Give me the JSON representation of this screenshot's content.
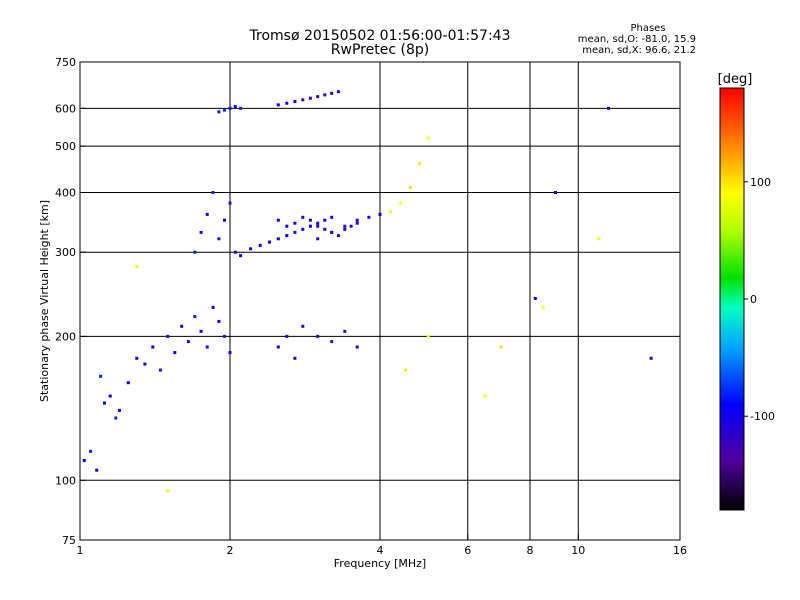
{
  "chart_data": {
    "type": "scatter",
    "title": "Tromsø 20150502 01:56:00-01:57:43",
    "subtitle": "RwPretec (8p)",
    "xlabel": "Frequency [MHz]",
    "ylabel": "Stationary phase Virtual Height [km]",
    "x_scale": "log",
    "y_scale": "log",
    "xlim": [
      1,
      16
    ],
    "ylim": [
      75,
      750
    ],
    "x_ticks": [
      1,
      2,
      4,
      6,
      8,
      10,
      16
    ],
    "y_ticks": [
      75,
      100,
      200,
      300,
      400,
      500,
      600,
      750
    ],
    "x_grid": [
      2,
      4,
      6,
      8,
      10
    ],
    "y_grid": [
      100,
      200,
      300,
      400,
      500,
      600
    ],
    "grid": true,
    "phase_stats": {
      "title": "Phases",
      "line_o": "mean, sd,O: -81.0, 15.9",
      "line_x": "mean, sd,X:  96.6, 21.2"
    },
    "colorbar": {
      "label": "[deg]",
      "range": [
        -180,
        180
      ],
      "ticks": [
        100,
        0,
        -100
      ],
      "tick_labels": [
        "100",
        "0",
        "-100"
      ],
      "placement": "right"
    },
    "series": [
      {
        "x": [
          1.02,
          1.05,
          1.08,
          1.1,
          1.12,
          1.15,
          1.18,
          1.2,
          1.25,
          1.3,
          1.35,
          1.4,
          1.45,
          1.5,
          1.55,
          1.6,
          1.65,
          1.7,
          1.75,
          1.8,
          1.85,
          1.9,
          1.95,
          2.0
        ],
        "y": [
          110,
          115,
          105,
          165,
          145,
          150,
          135,
          140,
          160,
          180,
          175,
          190,
          170,
          200,
          185,
          210,
          195,
          220,
          205,
          190,
          230,
          215,
          200,
          185
        ],
        "phase": [
          -100,
          -90,
          -105,
          -85,
          -95,
          -100,
          -90,
          -95,
          -100,
          -105,
          -95,
          -100,
          -90,
          -95,
          -100,
          -105,
          -95,
          -90,
          -100,
          -95,
          -105,
          -100,
          -90,
          -95
        ]
      },
      {
        "x": [
          1.7,
          1.75,
          1.8,
          1.85,
          1.9,
          1.95,
          2.0,
          2.05,
          2.1,
          2.2,
          2.3,
          2.4,
          2.5,
          2.6,
          2.7,
          2.8,
          2.9,
          3.0,
          3.1,
          3.2
        ],
        "y": [
          300,
          330,
          360,
          400,
          320,
          350,
          380,
          300,
          295,
          305,
          310,
          315,
          320,
          325,
          330,
          335,
          340,
          345,
          350,
          355
        ],
        "phase": [
          -90,
          -95,
          -100,
          -85,
          -95,
          -100,
          -90,
          -105,
          -100,
          -95,
          -100,
          -105,
          -110,
          -100,
          -95,
          -105,
          -110,
          -120,
          -115,
          -110
        ]
      },
      {
        "x": [
          2.5,
          2.6,
          2.7,
          2.8,
          2.9,
          3.0,
          3.1,
          3.2,
          3.3,
          3.4,
          3.5,
          3.6
        ],
        "y": [
          350,
          340,
          345,
          355,
          350,
          340,
          335,
          330,
          325,
          335,
          340,
          345
        ],
        "phase": [
          -100,
          -105,
          -110,
          -115,
          -120,
          -125,
          -130,
          -125,
          -120,
          -115,
          -110,
          -105
        ]
      },
      {
        "x": [
          3.0,
          3.2,
          3.4,
          3.6,
          3.8,
          4.0,
          4.2,
          4.4,
          4.6,
          4.8,
          5.0
        ],
        "y": [
          320,
          330,
          340,
          350,
          355,
          360,
          365,
          380,
          410,
          460,
          520
        ],
        "phase": [
          -120,
          -125,
          -130,
          -120,
          -110,
          -100,
          95,
          100,
          110,
          105,
          100
        ]
      },
      {
        "x": [
          2.5,
          2.6,
          2.7,
          2.8,
          2.9,
          3.0,
          3.1,
          3.2,
          3.3
        ],
        "y": [
          610,
          615,
          620,
          625,
          630,
          635,
          640,
          645,
          650
        ],
        "phase": [
          -100,
          -105,
          -110,
          -120,
          -125,
          -130,
          -125,
          -120,
          -115
        ]
      },
      {
        "x": [
          1.9,
          1.95,
          2.0,
          2.05,
          2.1
        ],
        "y": [
          590,
          595,
          600,
          605,
          600
        ],
        "phase": [
          -90,
          -85,
          -95,
          -100,
          -90
        ]
      },
      {
        "x": [
          2.5,
          2.6,
          2.7,
          2.8,
          3.0,
          3.2,
          3.4,
          3.6
        ],
        "y": [
          190,
          200,
          180,
          210,
          200,
          195,
          205,
          190
        ],
        "phase": [
          -110,
          -120,
          -115,
          -125,
          -130,
          -135,
          -125,
          -120
        ]
      },
      {
        "x": [
          1.3,
          1.5,
          4.5,
          5.0,
          6.5,
          7.0,
          8.2,
          8.5,
          9.0,
          11.0,
          11.5,
          14.0
        ],
        "y": [
          280,
          95,
          170,
          200,
          150,
          190,
          240,
          230,
          400,
          320,
          600,
          180
        ],
        "phase": [
          100,
          90,
          105,
          95,
          100,
          110,
          -110,
          100,
          -105,
          90,
          -100,
          -130
        ]
      }
    ]
  }
}
